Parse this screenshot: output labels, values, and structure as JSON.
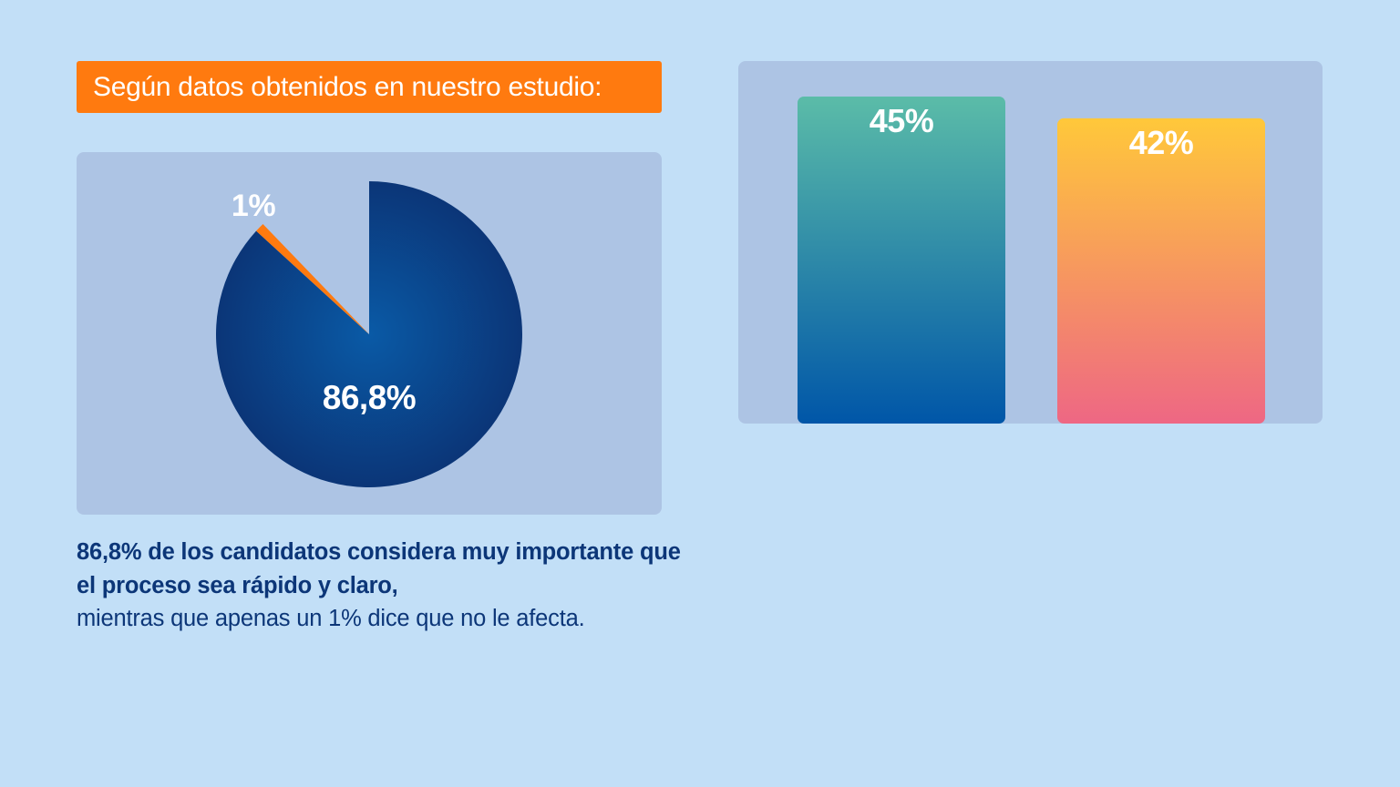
{
  "headline": "Según datos obtenidos en nuestro estudio:",
  "caption": {
    "bold": "86,8% de los candidatos considera muy importante que el proceso sea rápido y claro,",
    "normal": "mientras que apenas un 1% dice que no le afecta."
  },
  "colors": {
    "background": "#c2dff7",
    "panel": "#adc4e4",
    "accent_orange": "#ff7a0f",
    "pie_main_dark": "#0b3577",
    "pie_main_light": "#0a5aa6",
    "bar1_top": "#5bbca8",
    "bar1_bottom": "#0056a8",
    "bar2_top": "#ffc83a",
    "bar2_bottom": "#ee6784"
  },
  "chart_data": [
    {
      "type": "pie",
      "slices": [
        {
          "label": "86,8%",
          "value": 86.8,
          "color": "#0b3577"
        },
        {
          "label": "1%",
          "value": 1,
          "color": "#ff7a0f"
        }
      ],
      "unfilled_remainder": 12.2
    },
    {
      "type": "bar",
      "categories": [
        "",
        ""
      ],
      "values": [
        45,
        42
      ],
      "labels": [
        "45%",
        "42%"
      ],
      "ylim": [
        0,
        45
      ]
    }
  ]
}
